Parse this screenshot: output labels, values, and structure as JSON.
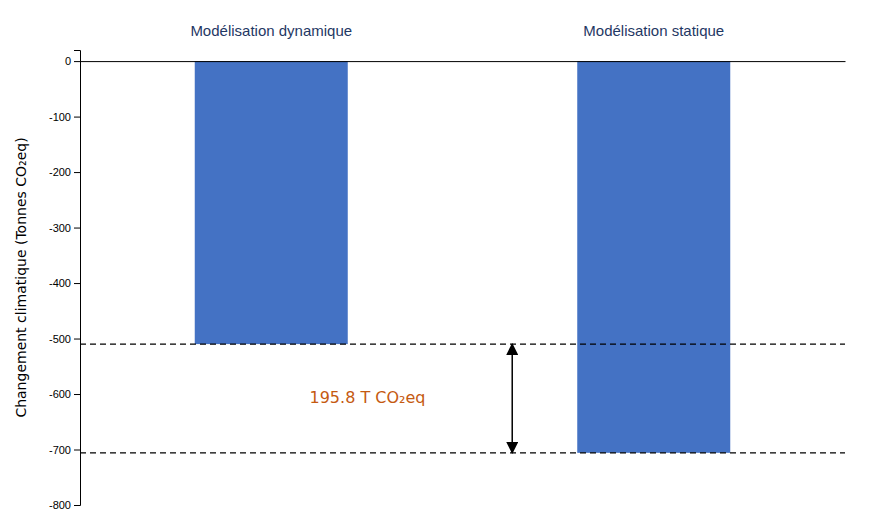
{
  "chart_data": {
    "type": "bar",
    "categories": [
      "Modélisation dynamique",
      "Modélisation statique"
    ],
    "values": [
      -510.0,
      -706.0
    ],
    "color": "#4472C4",
    "ylabel": "Changement climatique (Tonnes CO₂eq)",
    "ylim": [
      -800,
      20
    ],
    "yticks": [
      0,
      -100,
      -200,
      -300,
      -400,
      -500,
      -600,
      -700,
      -800
    ],
    "hlines": [
      -510.0,
      -706.0
    ],
    "annotations": [
      {
        "text": "195.8 T CO₂eq",
        "color": "#C55A11"
      }
    ],
    "grid": false
  }
}
